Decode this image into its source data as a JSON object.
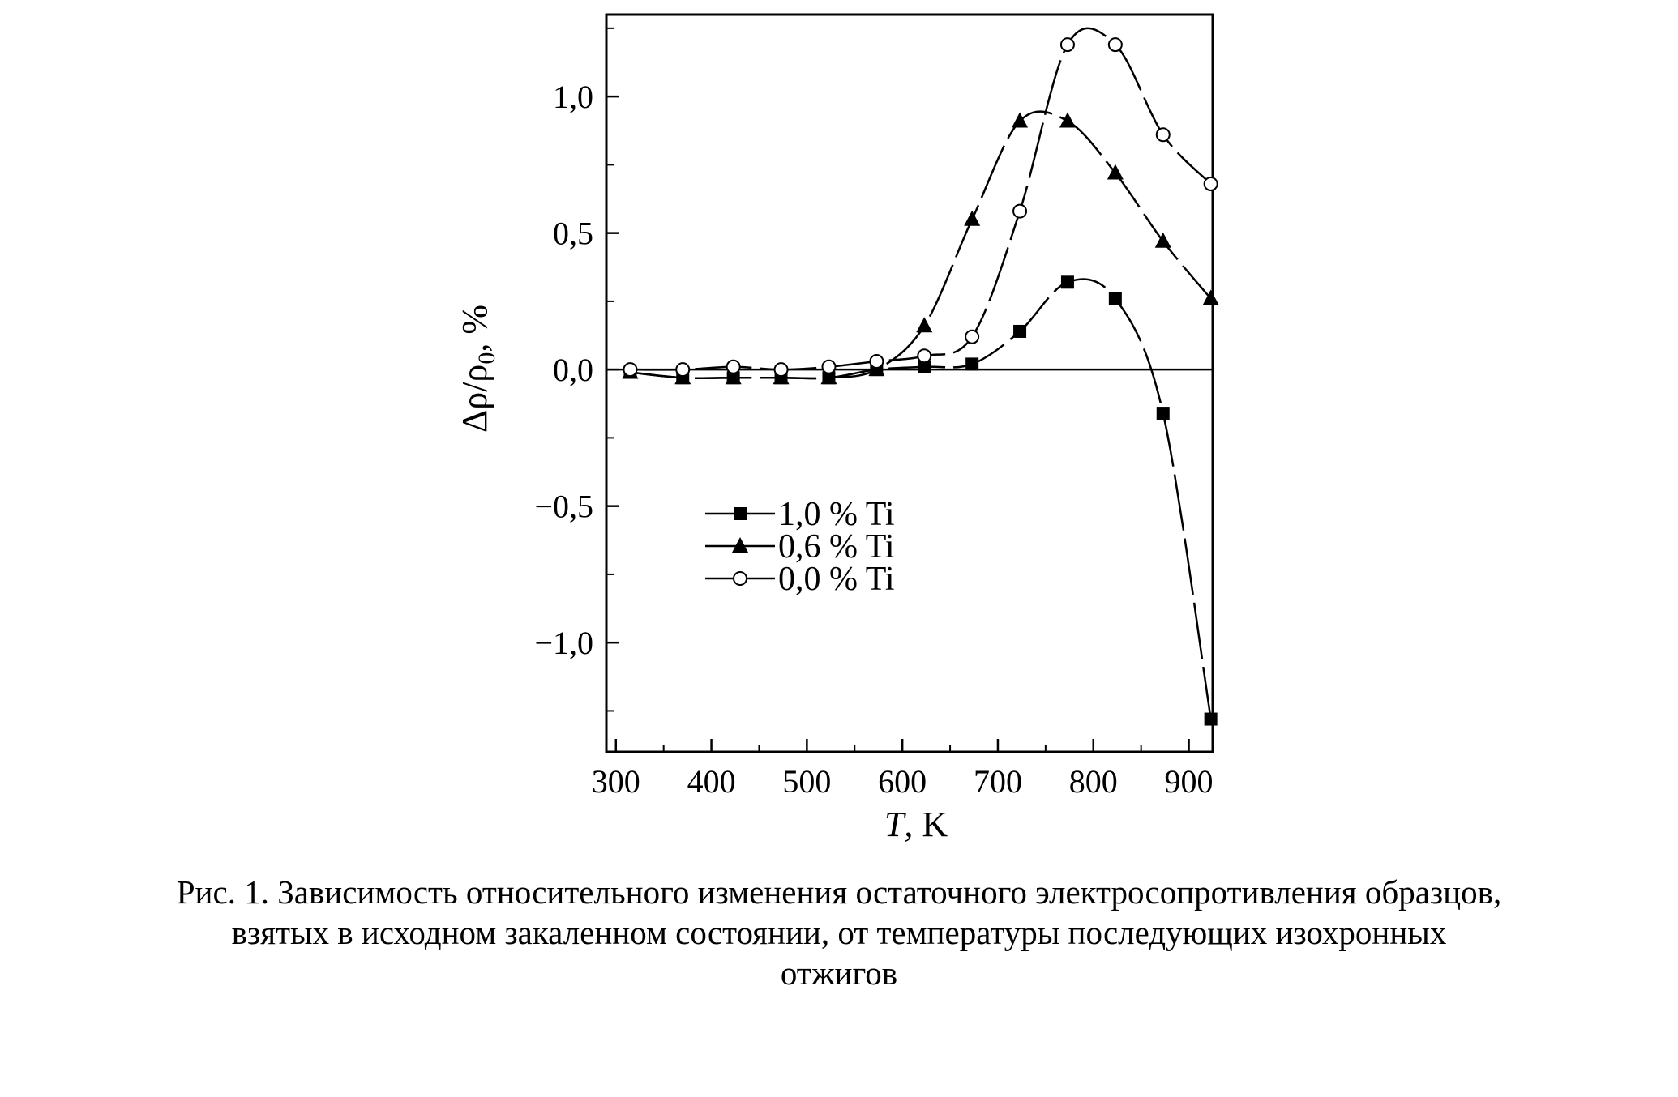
{
  "chart_data": {
    "type": "line",
    "xlabel": "T, K",
    "xlabel_italic": "T",
    "xlabel_unit": ", K",
    "ylabel": "Δρ/ρ0, %",
    "ylabel_main": "Δρ/ρ",
    "ylabel_sub": "0",
    "ylabel_unit": ", %",
    "xlim": [
      290,
      925
    ],
    "ylim": [
      -1.4,
      1.3
    ],
    "xticks": [
      300,
      400,
      500,
      600,
      700,
      800,
      900
    ],
    "xtick_labels": [
      "300",
      "400",
      "500",
      "600",
      "700",
      "800",
      "900"
    ],
    "yticks": [
      -1.0,
      -0.5,
      0.0,
      0.5,
      1.0
    ],
    "ytick_labels": [
      "−1,0",
      "−0,5",
      "0,0",
      "0,5",
      "1,0"
    ],
    "zero_line": true,
    "grid": false,
    "legend_position": "center-left",
    "series": [
      {
        "name": "1,0 % Ti",
        "marker": "square",
        "x": [
          315,
          370,
          423,
          473,
          523,
          573,
          623,
          673,
          723,
          773,
          823,
          873,
          923
        ],
        "y": [
          -0.01,
          -0.03,
          -0.03,
          -0.03,
          -0.03,
          0.0,
          0.01,
          0.02,
          0.14,
          0.32,
          0.26,
          -0.16,
          -1.28
        ]
      },
      {
        "name": "0,6 % Ti",
        "marker": "triangle",
        "x": [
          315,
          370,
          423,
          473,
          523,
          573,
          623,
          673,
          723,
          773,
          823,
          873,
          923
        ],
        "y": [
          -0.01,
          -0.03,
          -0.03,
          -0.03,
          -0.03,
          0.0,
          0.16,
          0.55,
          0.91,
          0.91,
          0.72,
          0.47,
          0.26
        ]
      },
      {
        "name": "0,0 % Ti",
        "marker": "circle-open",
        "x": [
          315,
          370,
          423,
          473,
          523,
          573,
          623,
          673,
          723,
          773,
          823,
          873,
          923
        ],
        "y": [
          0.0,
          0.0,
          0.01,
          0.0,
          0.01,
          0.03,
          0.05,
          0.12,
          0.58,
          1.19,
          1.19,
          0.86,
          0.68
        ]
      }
    ]
  },
  "caption": {
    "line1": "Рис. 1. Зависимость относительного изменения остаточного электросопротивления образцов,",
    "line2": "взятых в исходном закаленном состоянии, от температуры последующих изохронных",
    "line3": "отжигов"
  }
}
